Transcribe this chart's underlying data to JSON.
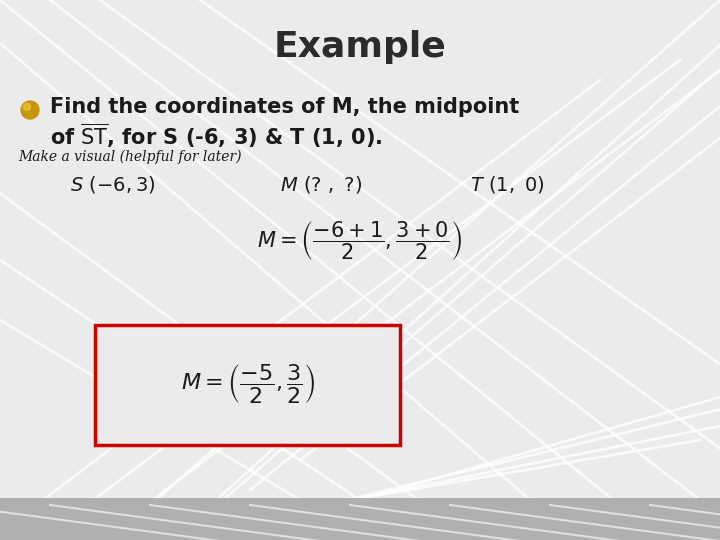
{
  "title": "Example",
  "title_fontsize": 28,
  "title_color": "#2b2b2b",
  "bg_color": "#e0e0e0",
  "bg_color_light": "#ebebeb",
  "bullet_color": "#c8960c",
  "text_color": "#1a1a1a",
  "small_text": "Make a visual (helpful for later)",
  "box_color": "#cc0000",
  "bottom_bar_color": "#b8b8b8",
  "line_color": "#ffffff",
  "line_alpha": 0.75,
  "line_lw": 2.0,
  "font_title": 26,
  "font_bullet": 15,
  "font_small": 10,
  "font_visual": 14,
  "font_eq1": 15,
  "font_eq2": 16
}
